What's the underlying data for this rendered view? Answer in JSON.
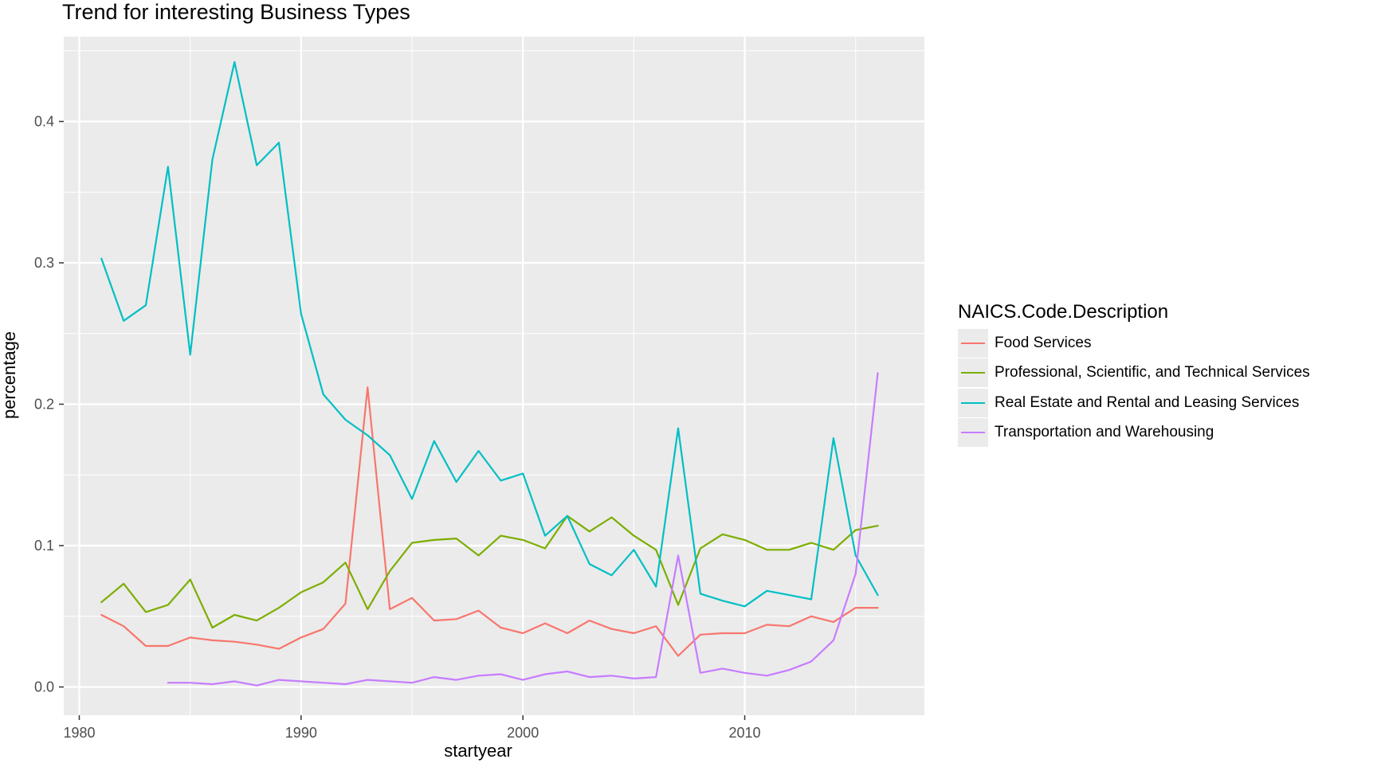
{
  "chart_data": {
    "type": "line",
    "title": "Trend for interesting Business Types",
    "xlabel": "startyear",
    "ylabel": "percentage",
    "xlim": [
      1979.3,
      2018.1
    ],
    "ylim": [
      -0.02,
      0.46
    ],
    "x_ticks": [
      1980,
      1990,
      2000,
      2010
    ],
    "y_ticks": [
      0.0,
      0.1,
      0.2,
      0.3,
      0.4
    ],
    "x_tick_labels": [
      "1980",
      "1990",
      "2000",
      "2010"
    ],
    "y_tick_labels": [
      "0.0",
      "0.1",
      "0.2",
      "0.3",
      "0.4"
    ],
    "grid": true,
    "background": "#ebebeb",
    "legend": {
      "title": "NAICS.Code.Description",
      "placement": "right"
    },
    "series": [
      {
        "name": "Food Services",
        "color": "#f8766d",
        "x": [
          1981,
          1982,
          1983,
          1984,
          1985,
          1986,
          1987,
          1988,
          1989,
          1990,
          1991,
          1992,
          1993,
          1994,
          1995,
          1996,
          1997,
          1998,
          1999,
          2000,
          2001,
          2002,
          2003,
          2004,
          2005,
          2006,
          2007,
          2008,
          2009,
          2010,
          2011,
          2012,
          2013,
          2014,
          2015,
          2016
        ],
        "values": [
          0.051,
          0.043,
          0.029,
          0.029,
          0.035,
          0.033,
          0.032,
          0.03,
          0.027,
          0.035,
          0.041,
          0.059,
          0.212,
          0.055,
          0.063,
          0.047,
          0.048,
          0.054,
          0.042,
          0.038,
          0.045,
          0.038,
          0.047,
          0.041,
          0.038,
          0.043,
          0.022,
          0.037,
          0.038,
          0.038,
          0.044,
          0.043,
          0.05,
          0.046,
          0.056,
          0.056
        ]
      },
      {
        "name": "Professional, Scientific, and Technical Services",
        "color": "#7cae00",
        "x": [
          1981,
          1982,
          1983,
          1984,
          1985,
          1986,
          1987,
          1988,
          1989,
          1990,
          1991,
          1992,
          1993,
          1994,
          1995,
          1996,
          1997,
          1998,
          1999,
          2000,
          2001,
          2002,
          2003,
          2004,
          2005,
          2006,
          2007,
          2008,
          2009,
          2010,
          2011,
          2012,
          2013,
          2014,
          2015,
          2016
        ],
        "values": [
          0.06,
          0.073,
          0.053,
          0.058,
          0.076,
          0.042,
          0.051,
          0.047,
          0.056,
          0.067,
          0.074,
          0.088,
          0.055,
          0.082,
          0.102,
          0.104,
          0.105,
          0.093,
          0.107,
          0.104,
          0.098,
          0.121,
          0.11,
          0.12,
          0.107,
          0.097,
          0.058,
          0.098,
          0.108,
          0.104,
          0.097,
          0.097,
          0.102,
          0.097,
          0.111,
          0.114
        ]
      },
      {
        "name": "Real Estate and Rental and Leasing Services",
        "color": "#00bfc4",
        "x": [
          1981,
          1982,
          1983,
          1984,
          1985,
          1986,
          1987,
          1988,
          1989,
          1990,
          1991,
          1992,
          1993,
          1994,
          1995,
          1996,
          1997,
          1998,
          1999,
          2000,
          2001,
          2002,
          2003,
          2004,
          2005,
          2006,
          2007,
          2008,
          2009,
          2010,
          2011,
          2012,
          2013,
          2014,
          2015,
          2016
        ],
        "values": [
          0.303,
          0.259,
          0.27,
          0.368,
          0.235,
          0.373,
          0.442,
          0.369,
          0.385,
          0.264,
          0.207,
          0.189,
          0.178,
          0.164,
          0.133,
          0.174,
          0.145,
          0.167,
          0.146,
          0.151,
          0.107,
          0.121,
          0.087,
          0.079,
          0.097,
          0.071,
          0.183,
          0.066,
          0.061,
          0.057,
          0.068,
          0.065,
          0.062,
          0.176,
          0.093,
          0.065
        ]
      },
      {
        "name": "Transportation and Warehousing",
        "color": "#c77cff",
        "x": [
          1984,
          1985,
          1986,
          1987,
          1988,
          1989,
          1990,
          1991,
          1992,
          1993,
          1994,
          1995,
          1996,
          1997,
          1998,
          1999,
          2000,
          2001,
          2002,
          2003,
          2004,
          2005,
          2006,
          2007,
          2008,
          2009,
          2010,
          2011,
          2012,
          2013,
          2014,
          2015,
          2016
        ],
        "values": [
          0.003,
          0.003,
          0.002,
          0.004,
          0.001,
          0.005,
          0.004,
          0.003,
          0.002,
          0.005,
          0.004,
          0.003,
          0.007,
          0.005,
          0.008,
          0.009,
          0.005,
          0.009,
          0.011,
          0.007,
          0.008,
          0.006,
          0.007,
          0.093,
          0.01,
          0.013,
          0.01,
          0.008,
          0.012,
          0.018,
          0.033,
          0.08,
          0.222
        ]
      }
    ]
  }
}
